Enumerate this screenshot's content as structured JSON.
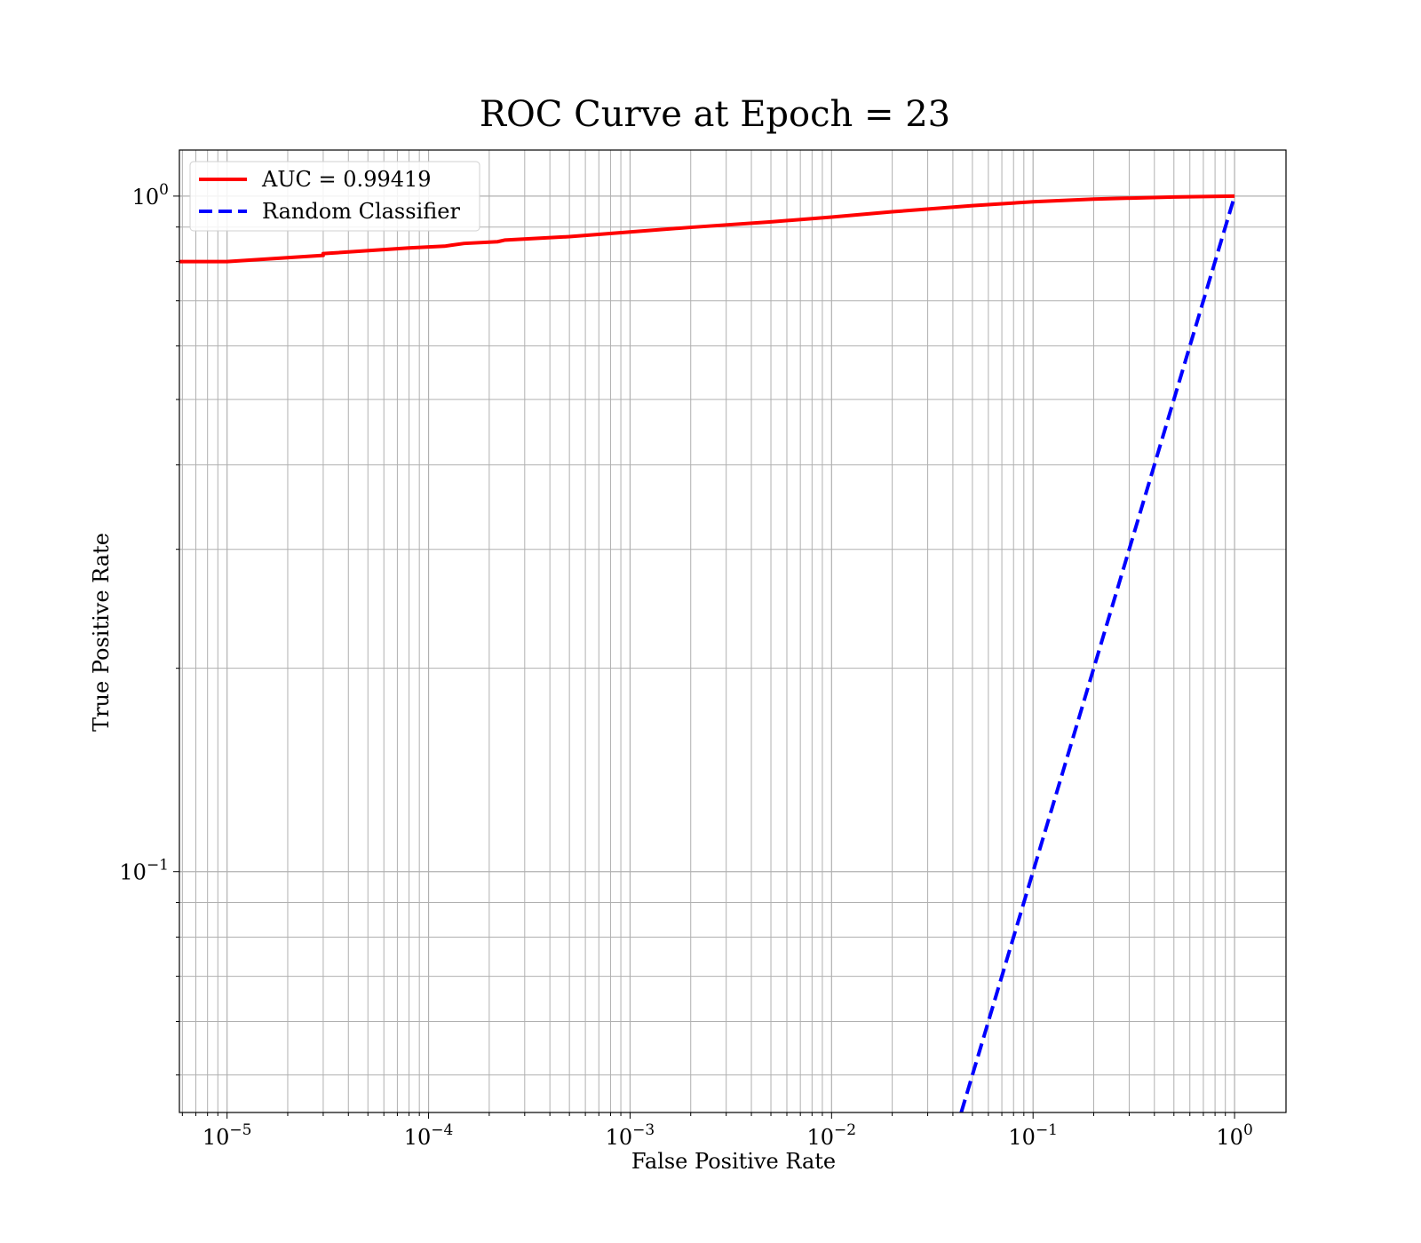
{
  "chart_data": {
    "type": "line",
    "title": "ROC Curve at Epoch = 23",
    "xlabel": "False Positive Rate",
    "ylabel": "True Positive Rate",
    "xscale": "log",
    "yscale": "log",
    "xlim": [
      5.8e-06,
      1.8
    ],
    "ylim": [
      0.044,
      1.17
    ],
    "grid": true,
    "grid_minor": true,
    "legend_position": "top-left",
    "x_ticks": [
      {
        "value": 1e-05,
        "base": "10",
        "exp": "−5"
      },
      {
        "value": 0.0001,
        "base": "10",
        "exp": "−4"
      },
      {
        "value": 0.001,
        "base": "10",
        "exp": "−3"
      },
      {
        "value": 0.01,
        "base": "10",
        "exp": "−2"
      },
      {
        "value": 0.1,
        "base": "10",
        "exp": "−1"
      },
      {
        "value": 1,
        "base": "10",
        "exp": "0"
      }
    ],
    "y_ticks": [
      {
        "value": 0.1,
        "base": "10",
        "exp": "−1"
      },
      {
        "value": 1,
        "base": "10",
        "exp": "0"
      }
    ],
    "series": [
      {
        "name": "AUC = 0.99419",
        "color": "#ff0000",
        "style": "solid",
        "x": [
          5.8e-06,
          1e-05,
          3e-05,
          3e-05,
          8e-05,
          0.00012,
          0.00013,
          0.00015,
          0.00022,
          0.00024,
          0.0005,
          0.001,
          0.002,
          0.005,
          0.01,
          0.02,
          0.05,
          0.1,
          0.2,
          0.5,
          1
        ],
        "y": [
          0.8,
          0.8,
          0.817,
          0.822,
          0.838,
          0.843,
          0.846,
          0.851,
          0.856,
          0.861,
          0.871,
          0.885,
          0.899,
          0.916,
          0.931,
          0.948,
          0.968,
          0.981,
          0.99,
          0.997,
          1
        ]
      },
      {
        "name": "Random Classifier",
        "color": "#0000ff",
        "style": "dashed",
        "x": [
          0.044,
          1
        ],
        "y": [
          0.044,
          1
        ]
      }
    ]
  }
}
